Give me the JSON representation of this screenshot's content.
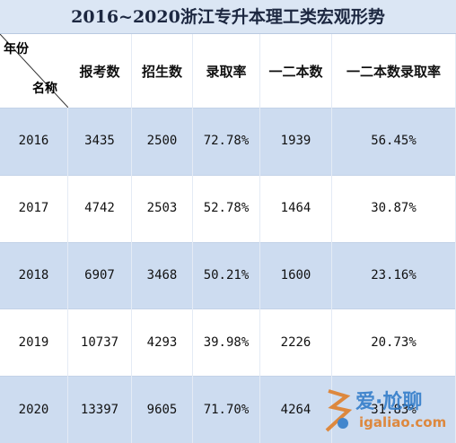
{
  "title": "2016~2020浙江专升本理工类宏观形势",
  "table": {
    "corner": {
      "top": "年份",
      "bottom": "名称"
    },
    "columns": [
      "报考数",
      "招生数",
      "录取率",
      "一二本数",
      "一二本数录取率"
    ],
    "rows": [
      [
        "2016",
        "3435",
        "2500",
        "72.78%",
        "1939",
        "56.45%"
      ],
      [
        "2017",
        "4742",
        "2503",
        "52.78%",
        "1464",
        "30.87%"
      ],
      [
        "2018",
        "6907",
        "3468",
        "50.21%",
        "1600",
        "23.16%"
      ],
      [
        "2019",
        "10737",
        "4293",
        "39.98%",
        "2226",
        "20.73%"
      ],
      [
        "2020",
        "13397",
        "9605",
        "71.70%",
        "4264",
        "31.83%"
      ]
    ]
  },
  "watermark": {
    "logo": "爱·尬聊",
    "url": "igaliao.com"
  }
}
